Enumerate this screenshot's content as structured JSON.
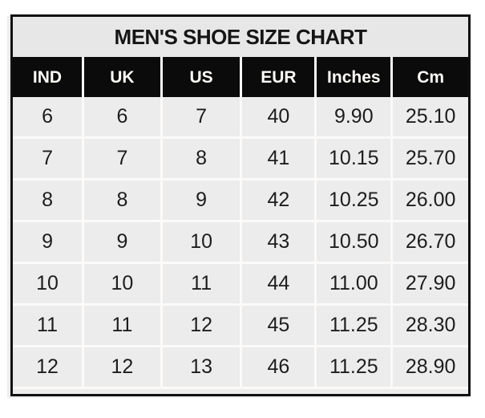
{
  "page_title": "MEN'S SHOE SIZE CHART",
  "chart_data": {
    "type": "table",
    "title": "MEN'S SHOE SIZE CHART",
    "columns": [
      "IND",
      "UK",
      "US",
      "EUR",
      "Inches",
      "Cm"
    ],
    "rows": [
      [
        "6",
        "6",
        "7",
        "40",
        "9.90",
        "25.10"
      ],
      [
        "7",
        "7",
        "8",
        "41",
        "10.15",
        "25.70"
      ],
      [
        "8",
        "8",
        "9",
        "42",
        "10.25",
        "26.00"
      ],
      [
        "9",
        "9",
        "10",
        "43",
        "10.50",
        "26.70"
      ],
      [
        "10",
        "10",
        "11",
        "44",
        "11.00",
        "27.90"
      ],
      [
        "11",
        "11",
        "12",
        "45",
        "11.25",
        "28.30"
      ],
      [
        "12",
        "12",
        "13",
        "46",
        "11.25",
        "28.90"
      ]
    ],
    "layout": {
      "grid": "on",
      "header_position": "top"
    }
  },
  "colors": {
    "page_bg": "#ffffff",
    "outer_border": "#121010",
    "title_bg": "#e8e7e7",
    "title_text": "#161515",
    "header_bg": "#0c0b0b",
    "header_text": "#fdfbf7",
    "cell_bg": "#edecec",
    "grid_line": "#fbfaf9",
    "cell_text": "#1e1d1d"
  }
}
